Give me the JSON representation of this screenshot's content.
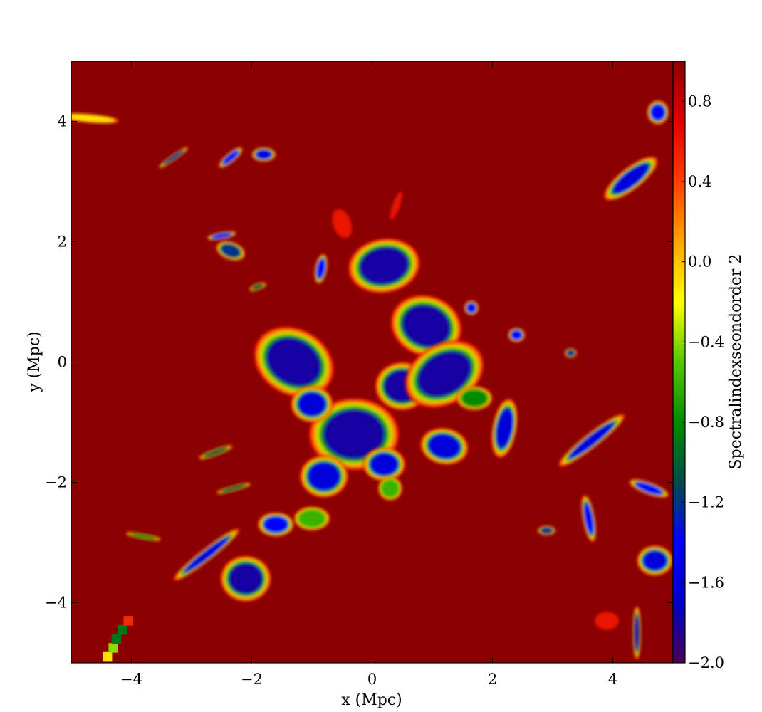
{
  "chart_data": {
    "type": "heatmap",
    "title": "",
    "xlabel": "x  (Mpc)",
    "ylabel": "y  (Mpc)",
    "xlim": [
      -5,
      5
    ],
    "ylim": [
      -5,
      5
    ],
    "x_ticks": [
      {
        "value": -4,
        "label": "−4"
      },
      {
        "value": -2,
        "label": "−2"
      },
      {
        "value": 0,
        "label": "0"
      },
      {
        "value": 2,
        "label": "2"
      },
      {
        "value": 4,
        "label": "4"
      }
    ],
    "y_ticks": [
      {
        "value": -4,
        "label": "−4"
      },
      {
        "value": -2,
        "label": "−2"
      },
      {
        "value": 0,
        "label": "0"
      },
      {
        "value": 2,
        "label": "2"
      },
      {
        "value": 4,
        "label": "4"
      }
    ],
    "grid": false,
    "colorbar": {
      "label": "Spectralindexseondorder 2",
      "range": [
        -2.0,
        1.0
      ],
      "ticks": [
        {
          "value": 0.8,
          "label": "0.8"
        },
        {
          "value": 0.4,
          "label": "0.4"
        },
        {
          "value": 0.0,
          "label": "0.0"
        },
        {
          "value": -0.4,
          "label": "−0.4"
        },
        {
          "value": -0.8,
          "label": "−0.8"
        },
        {
          "value": -1.2,
          "label": "−1.2"
        },
        {
          "value": -1.6,
          "label": "−1.6"
        },
        {
          "value": -2.0,
          "label": "−2.0"
        }
      ],
      "colormap": [
        "#4b0055",
        "#0000c8",
        "#0000ff",
        "#004b4b",
        "#008c00",
        "#55c800",
        "#ffff00",
        "#ffa500",
        "#ff4000",
        "#e00000",
        "#8b0000"
      ]
    },
    "background_value": 1.0,
    "regions": [
      {
        "kind": "blob",
        "x": 0.2,
        "y": 1.6,
        "rx": 0.6,
        "ry": 0.45,
        "rot": -10,
        "value": -1.8
      },
      {
        "kind": "blob",
        "x": 0.9,
        "y": 0.6,
        "rx": 0.6,
        "ry": 0.5,
        "rot": 20,
        "value": -1.8
      },
      {
        "kind": "blob",
        "x": -0.3,
        "y": -1.2,
        "rx": 0.75,
        "ry": 0.6,
        "rot": 0,
        "value": -1.8
      },
      {
        "kind": "blob",
        "x": -1.3,
        "y": 0.0,
        "rx": 0.7,
        "ry": 0.55,
        "rot": 30,
        "value": -1.8
      },
      {
        "kind": "blob",
        "x": 0.5,
        "y": -0.4,
        "rx": 0.45,
        "ry": 0.4,
        "rot": 0,
        "value": -1.8
      },
      {
        "kind": "blob",
        "x": 1.2,
        "y": -0.2,
        "rx": 0.7,
        "ry": 0.5,
        "rot": -30,
        "value": -1.8
      },
      {
        "kind": "blob",
        "x": -1.0,
        "y": -0.7,
        "rx": 0.35,
        "ry": 0.3,
        "rot": 0,
        "value": -1.6
      },
      {
        "kind": "blob",
        "x": 1.2,
        "y": -1.4,
        "rx": 0.4,
        "ry": 0.3,
        "rot": 10,
        "value": -1.6
      },
      {
        "kind": "blob",
        "x": -0.8,
        "y": -1.9,
        "rx": 0.4,
        "ry": 0.35,
        "rot": 0,
        "value": -1.6
      },
      {
        "kind": "blob",
        "x": 0.2,
        "y": -1.7,
        "rx": 0.35,
        "ry": 0.28,
        "rot": 0,
        "value": -1.6
      },
      {
        "kind": "blob",
        "x": -2.1,
        "y": -3.6,
        "rx": 0.42,
        "ry": 0.38,
        "rot": 0,
        "value": -1.8
      },
      {
        "kind": "blob",
        "x": -2.75,
        "y": -3.2,
        "rx": 0.7,
        "ry": 0.1,
        "rot": -38,
        "value": -1.6
      },
      {
        "kind": "blob",
        "x": -1.6,
        "y": -2.7,
        "rx": 0.3,
        "ry": 0.2,
        "rot": 0,
        "value": -1.4
      },
      {
        "kind": "blob",
        "x": 0.3,
        "y": -2.1,
        "rx": 0.2,
        "ry": 0.2,
        "rot": 0,
        "value": -0.6
      },
      {
        "kind": "blob",
        "x": 2.2,
        "y": -1.1,
        "rx": 0.2,
        "ry": 0.5,
        "rot": 10,
        "value": -1.6
      },
      {
        "kind": "blob",
        "x": 4.3,
        "y": 3.05,
        "rx": 0.55,
        "ry": 0.18,
        "rot": -38,
        "value": -1.6
      },
      {
        "kind": "blob",
        "x": 4.75,
        "y": 4.15,
        "rx": 0.18,
        "ry": 0.2,
        "rot": 0,
        "value": -1.4
      },
      {
        "kind": "blob",
        "x": 3.65,
        "y": -1.3,
        "rx": 0.7,
        "ry": 0.12,
        "rot": -38,
        "value": -1.6
      },
      {
        "kind": "blob",
        "x": 4.6,
        "y": -2.1,
        "rx": 0.35,
        "ry": 0.1,
        "rot": 20,
        "value": -1.4
      },
      {
        "kind": "blob",
        "x": 4.7,
        "y": -3.3,
        "rx": 0.3,
        "ry": 0.25,
        "rot": 0,
        "value": -1.6
      },
      {
        "kind": "blob",
        "x": 3.6,
        "y": -2.6,
        "rx": 0.1,
        "ry": 0.4,
        "rot": -10,
        "value": -1.4
      },
      {
        "kind": "blob",
        "x": 4.4,
        "y": -4.5,
        "rx": 0.07,
        "ry": 0.45,
        "rot": 0,
        "value": -1.8
      },
      {
        "kind": "blob",
        "x": -2.35,
        "y": 3.4,
        "rx": 0.25,
        "ry": 0.08,
        "rot": -40,
        "value": -1.4
      },
      {
        "kind": "blob",
        "x": -1.8,
        "y": 3.45,
        "rx": 0.2,
        "ry": 0.12,
        "rot": 0,
        "value": -1.6
      },
      {
        "kind": "blob",
        "x": -3.3,
        "y": 3.4,
        "rx": 0.3,
        "ry": 0.05,
        "rot": -35,
        "value": -1.2
      },
      {
        "kind": "blob",
        "x": -2.5,
        "y": 2.1,
        "rx": 0.25,
        "ry": 0.06,
        "rot": -10,
        "value": -1.4
      },
      {
        "kind": "blob",
        "x": -2.35,
        "y": 1.85,
        "rx": 0.25,
        "ry": 0.15,
        "rot": 20,
        "value": -1.2
      },
      {
        "kind": "blob",
        "x": -1.9,
        "y": 1.25,
        "rx": 0.15,
        "ry": 0.06,
        "rot": -20,
        "value": -1.0
      },
      {
        "kind": "blob",
        "x": -0.85,
        "y": 1.55,
        "rx": 0.1,
        "ry": 0.25,
        "rot": 10,
        "value": -1.4
      },
      {
        "kind": "blob",
        "x": 1.65,
        "y": 0.9,
        "rx": 0.12,
        "ry": 0.12,
        "rot": 0,
        "value": -1.4
      },
      {
        "kind": "blob",
        "x": 2.4,
        "y": 0.45,
        "rx": 0.14,
        "ry": 0.12,
        "rot": 0,
        "value": -1.4
      },
      {
        "kind": "blob",
        "x": 3.3,
        "y": 0.15,
        "rx": 0.1,
        "ry": 0.08,
        "rot": 0,
        "value": -1.2
      },
      {
        "kind": "blob",
        "x": -2.3,
        "y": -2.1,
        "rx": 0.3,
        "ry": 0.05,
        "rot": -15,
        "value": -1.0
      },
      {
        "kind": "blob",
        "x": -2.6,
        "y": -1.5,
        "rx": 0.3,
        "ry": 0.06,
        "rot": -20,
        "value": -1.0
      },
      {
        "kind": "blob",
        "x": -3.8,
        "y": -2.9,
        "rx": 0.3,
        "ry": 0.05,
        "rot": 10,
        "value": -0.8
      },
      {
        "kind": "blob",
        "x": 2.9,
        "y": -2.8,
        "rx": 0.15,
        "ry": 0.08,
        "rot": 0,
        "value": -1.2
      },
      {
        "kind": "blob",
        "x": -4.7,
        "y": 4.05,
        "rx": 0.5,
        "ry": 0.07,
        "rot": 5,
        "value": -0.1
      },
      {
        "kind": "blob",
        "x": 3.9,
        "y": -4.3,
        "rx": 0.2,
        "ry": 0.15,
        "rot": 0,
        "value": 0.6
      },
      {
        "kind": "blob",
        "x": 0.4,
        "y": 2.6,
        "rx": 0.06,
        "ry": 0.25,
        "rot": 20,
        "value": 0.6
      },
      {
        "kind": "blob",
        "x": -0.5,
        "y": 2.3,
        "rx": 0.15,
        "ry": 0.25,
        "rot": -20,
        "value": 0.6
      },
      {
        "kind": "blob",
        "x": -1.0,
        "y": -2.6,
        "rx": 0.3,
        "ry": 0.2,
        "rot": 0,
        "value": -0.6
      },
      {
        "kind": "blob",
        "x": 1.7,
        "y": -0.6,
        "rx": 0.3,
        "ry": 0.2,
        "rot": 0,
        "value": -0.8
      }
    ],
    "pixel_strip": [
      {
        "x": -4.4,
        "y": -4.9,
        "value": -0.1
      },
      {
        "x": -4.3,
        "y": -4.75,
        "value": -0.4
      },
      {
        "x": -4.25,
        "y": -4.6,
        "value": -0.9
      },
      {
        "x": -4.15,
        "y": -4.45,
        "value": -0.9
      },
      {
        "x": -4.05,
        "y": -4.3,
        "value": 0.5
      }
    ]
  }
}
